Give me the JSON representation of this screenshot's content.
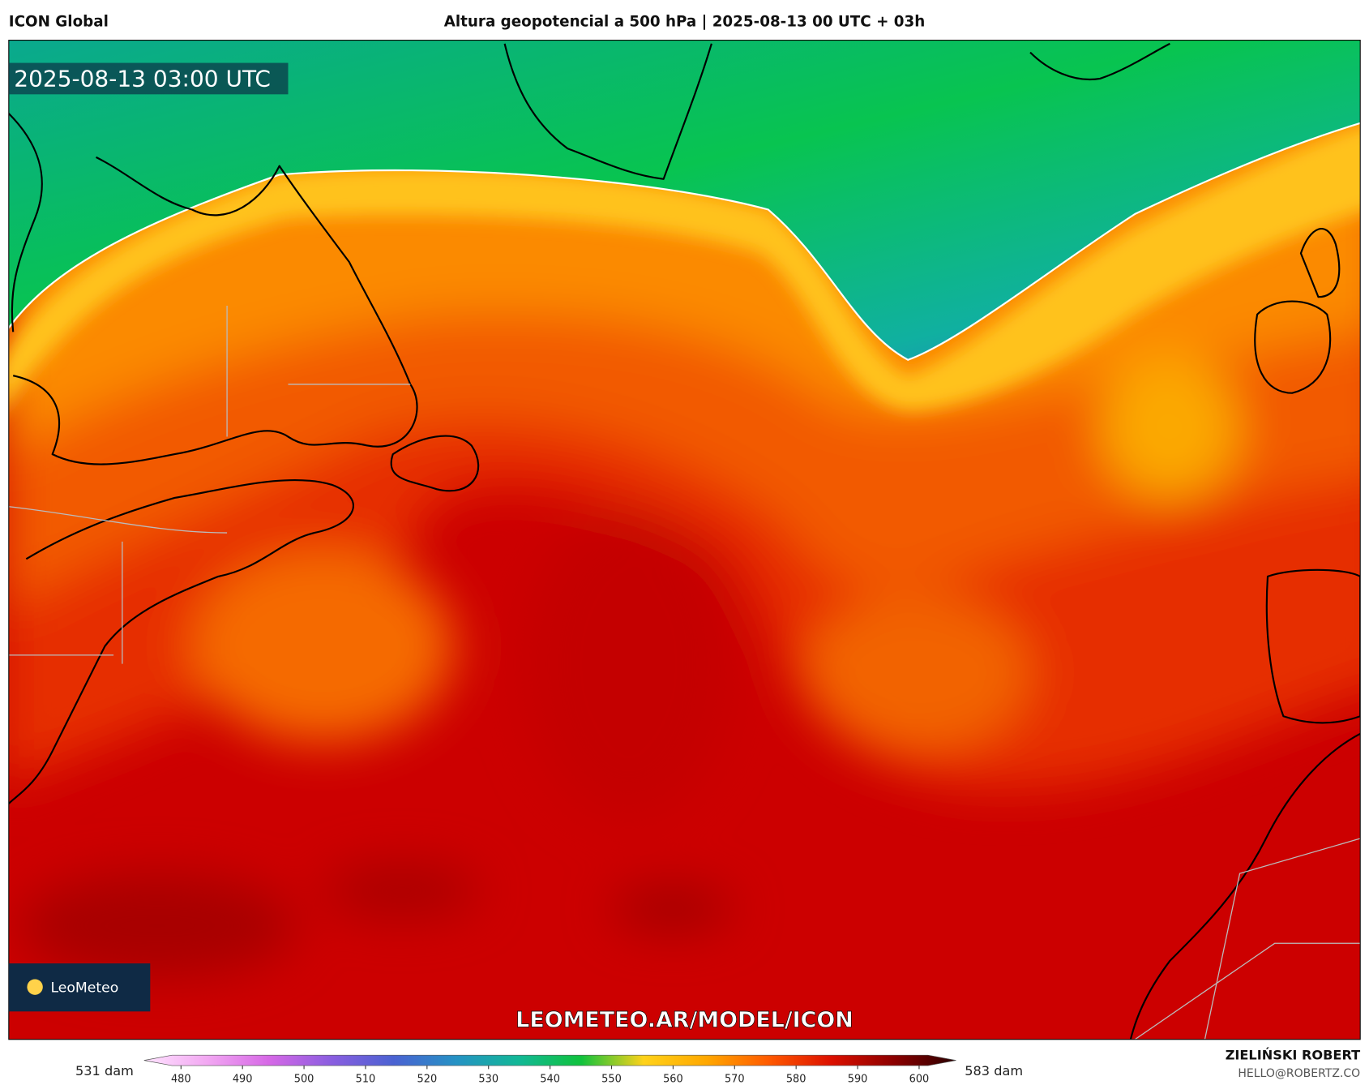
{
  "header": {
    "model": "ICON Global",
    "title": "Altura geopotencial a 500 hPa | 2025-08-13 00 UTC + 03h"
  },
  "map": {
    "timestamp": "2025-08-13 03:00 UTC",
    "watermark": "LEOMETEO.AR/MODEL/ICON",
    "logo": "LeoMeteo"
  },
  "colorbar": {
    "min_label": "531 dam",
    "max_label": "583 dam",
    "lim": [
      474,
      606
    ],
    "ticks": [
      480,
      490,
      500,
      510,
      520,
      530,
      540,
      550,
      560,
      570,
      580,
      590,
      600
    ],
    "colors": [
      "#ffe4ff",
      "#f2a8f2",
      "#d668e6",
      "#8a5ee0",
      "#4a62d2",
      "#2592c4",
      "#12b896",
      "#10c23c",
      "#ffd21a",
      "#ffa800",
      "#ff5a00",
      "#dc1000",
      "#8c0000",
      "#2a0000"
    ]
  },
  "footer": {
    "author": "ZIELIŃSKI ROBERT",
    "email": "HELLO@ROBERTZ.CO"
  }
}
